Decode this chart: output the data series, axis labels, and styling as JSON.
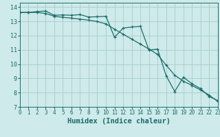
{
  "title": "",
  "xlabel": "Humidex (Indice chaleur)",
  "ylabel": "",
  "background_color": "#ceeaea",
  "grid_color": "#a8cccc",
  "line_color": "#1a6b6b",
  "xlim": [
    0,
    23
  ],
  "ylim": [
    7,
    14.3
  ],
  "yticks": [
    7,
    8,
    9,
    10,
    11,
    12,
    13,
    14
  ],
  "xticks": [
    0,
    1,
    2,
    3,
    4,
    5,
    6,
    7,
    8,
    9,
    10,
    11,
    12,
    13,
    14,
    15,
    16,
    17,
    18,
    19,
    20,
    21,
    22,
    23
  ],
  "line1_x": [
    0,
    1,
    2,
    3,
    4,
    5,
    6,
    7,
    8,
    9,
    10,
    11,
    12,
    13,
    14,
    15,
    16,
    17,
    18,
    19,
    20,
    21,
    22,
    23
  ],
  "line1_y": [
    13.62,
    13.62,
    13.68,
    13.72,
    13.42,
    13.45,
    13.42,
    13.47,
    13.3,
    13.32,
    13.35,
    11.88,
    12.52,
    12.6,
    12.65,
    10.98,
    11.05,
    9.18,
    8.08,
    9.08,
    8.62,
    8.28,
    7.72,
    7.45
  ],
  "line2_x": [
    0,
    1,
    2,
    3,
    4,
    5,
    6,
    7,
    8,
    9,
    10,
    11,
    12,
    13,
    14,
    15,
    16,
    17,
    18,
    19,
    20,
    21,
    22,
    23
  ],
  "line2_y": [
    13.62,
    13.62,
    13.62,
    13.55,
    13.35,
    13.28,
    13.22,
    13.15,
    13.08,
    12.98,
    12.82,
    12.45,
    12.1,
    11.75,
    11.4,
    11.05,
    10.68,
    9.92,
    9.22,
    8.8,
    8.5,
    8.18,
    7.82,
    7.38
  ],
  "xlabel_fontsize": 7.5,
  "tick_fontsize": 5.5
}
